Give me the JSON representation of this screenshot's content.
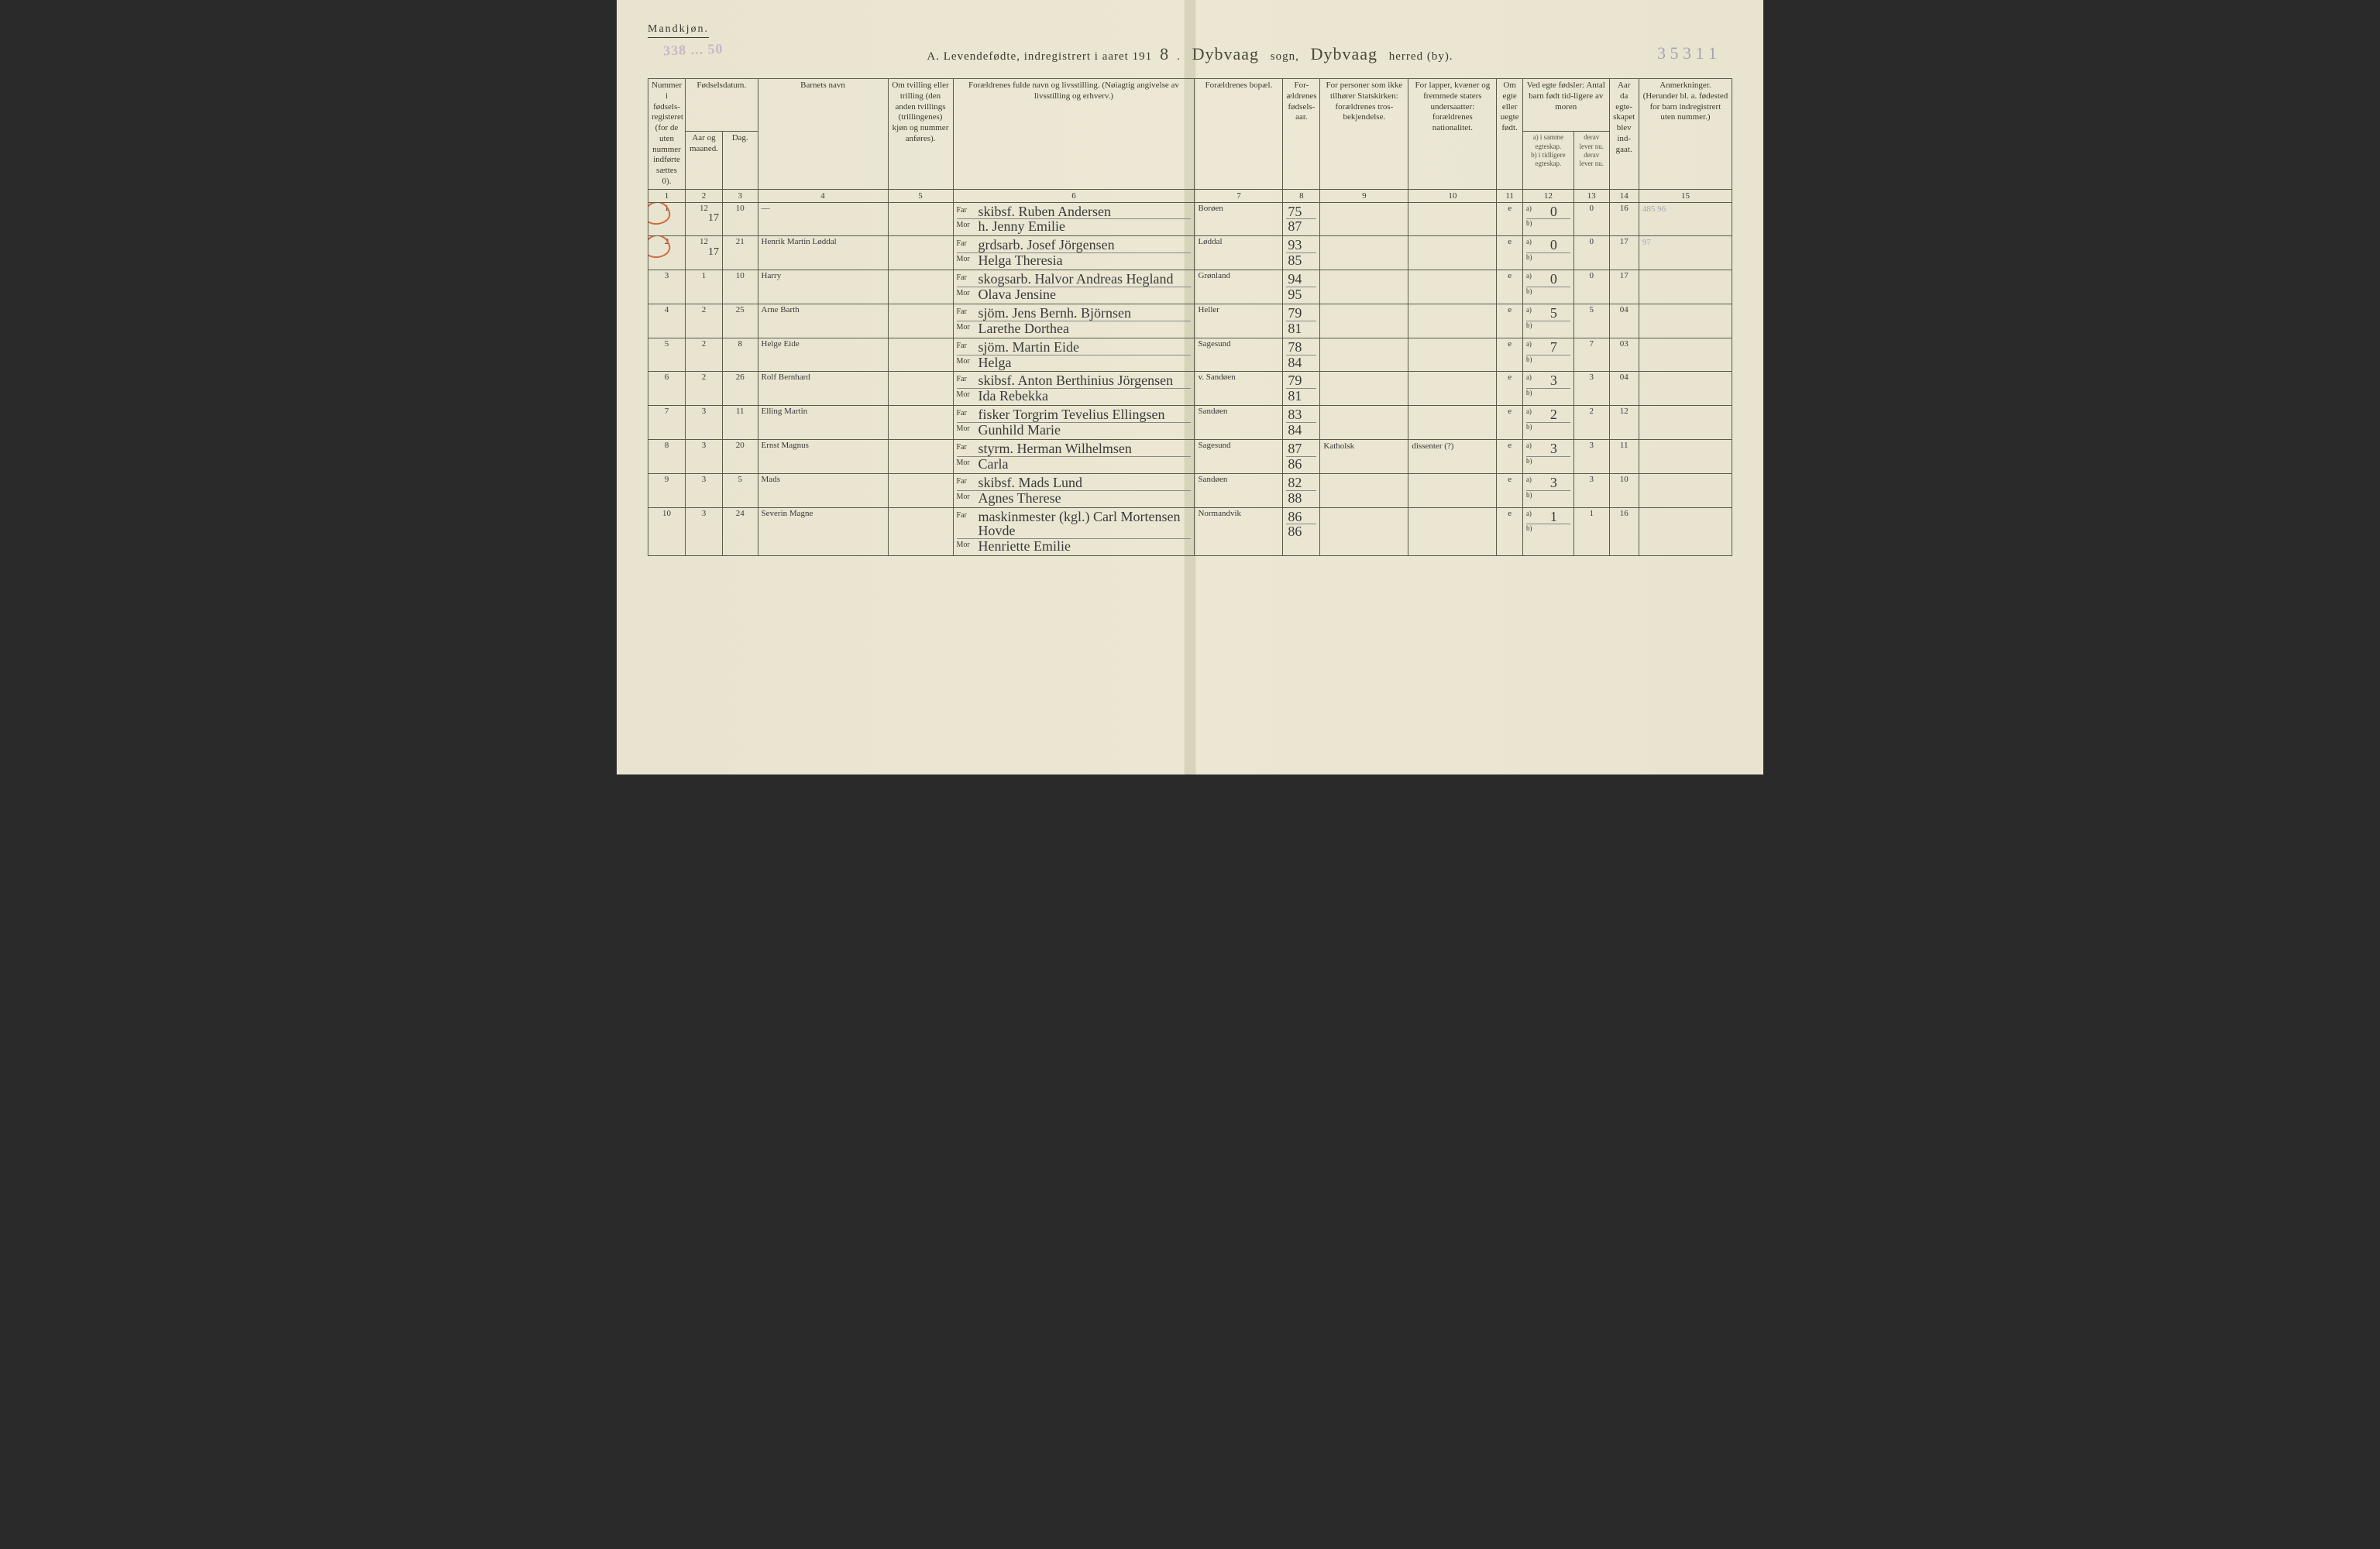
{
  "gender_heading": "Mandkjøn.",
  "stamp_text": "338 ... 50",
  "title_prefix": "A. Levendefødte, indregistrert i aaret 191",
  "title_year_suffix": "8",
  "title_dot": ".",
  "sogn_value": "Dybvaag",
  "sogn_label": "sogn,",
  "herred_value": "Dybvaag",
  "herred_label": "herred (by).",
  "page_code": "3 5 3 1 1",
  "headers": {
    "col1": "Nummer i fødsels-registeret (for de uten nummer indførte sættes 0).",
    "col2_top": "Fødselsdatum.",
    "col2a": "Aar og maaned.",
    "col2b": "Dag.",
    "col4": "Barnets navn",
    "col5": "Om tvilling eller trilling (den anden tvillings (trillingenes) kjøn og nummer anføres).",
    "col6": "Forældrenes fulde navn og livsstilling. (Nøiagtig angivelse av livsstilling og erhverv.)",
    "col7": "Forældrenes bopæl.",
    "col8": "For-ældrenes fødsels-aar.",
    "col9": "For personer som ikke tilhører Statskirken: forældrenes tros-bekjendelse.",
    "col10": "For lapper, kvæner og fremmede staters undersaatter: forældrenes nationalitet.",
    "col11": "Om egte eller uegte født.",
    "col12_top": "Ved egte fødsler: Antal barn født tid-ligere av moren",
    "col12a": "a) i samme egteskap.",
    "col12b": "b) i tidligere egteskap.",
    "col13_top": "derav lever nu.",
    "col13b": "derav lever nu.",
    "col14": "Aar da egte-skapet blev ind-gaat.",
    "col15": "Anmerkninger. (Herunder bl. a. fødested for barn indregistrert uten nummer.)"
  },
  "colnums": [
    "1",
    "2",
    "3",
    "4",
    "5",
    "6",
    "7",
    "8",
    "9",
    "10",
    "11",
    "12",
    "13",
    "14",
    "15"
  ],
  "rows": [
    {
      "num": "1",
      "circle": true,
      "year_month": "12",
      "year_below": "17",
      "day": "10",
      "name": "—",
      "far": "skibsf. Ruben Andersen",
      "mor": "h. Jenny Emilie",
      "residence": "Borøen",
      "far_year": "75",
      "mor_year": "87",
      "faith": "",
      "nat": "",
      "legit": "e",
      "c12a": "0",
      "c12b": "",
      "c13": "0",
      "c14": "16",
      "remark": "485 96"
    },
    {
      "num": "2",
      "circle": true,
      "year_month": "12",
      "year_below": "17",
      "day": "21",
      "name": "Henrik Martin Løddal",
      "far": "grdsarb. Josef Jörgensen",
      "mor": "Helga Theresia",
      "residence": "Løddal",
      "far_year": "93",
      "mor_year": "85",
      "faith": "",
      "nat": "",
      "legit": "e",
      "c12a": "0",
      "c12b": "",
      "c13": "0",
      "c14": "17",
      "remark": "97"
    },
    {
      "num": "3",
      "circle": false,
      "year_month": "1",
      "year_below": "",
      "day": "10",
      "name": "Harry",
      "far": "skogsarb. Halvor Andreas Hegland",
      "mor": "Olava Jensine",
      "residence": "Grønland",
      "far_year": "94",
      "mor_year": "95",
      "faith": "",
      "nat": "",
      "legit": "e",
      "c12a": "0",
      "c12b": "",
      "c13": "0",
      "c14": "17",
      "remark": ""
    },
    {
      "num": "4",
      "circle": false,
      "year_month": "2",
      "year_below": "",
      "day": "25",
      "name": "Arne Barth",
      "far": "sjöm. Jens Bernh. Björnsen",
      "mor": "Larethe Dorthea",
      "residence": "Heller",
      "far_year": "79",
      "mor_year": "81",
      "faith": "",
      "nat": "",
      "legit": "e",
      "c12a": "5",
      "c12b": "",
      "c13": "5",
      "c14": "04",
      "remark": ""
    },
    {
      "num": "5",
      "circle": false,
      "year_month": "2",
      "year_below": "",
      "day": "8",
      "name": "Helge Eide",
      "far": "sjöm. Martin Eide",
      "mor": "Helga",
      "residence": "Sagesund",
      "far_year": "78",
      "mor_year": "84",
      "faith": "",
      "nat": "",
      "legit": "e",
      "c12a": "7",
      "c12b": "",
      "c13": "7",
      "c14": "03",
      "remark": ""
    },
    {
      "num": "6",
      "circle": false,
      "year_month": "2",
      "year_below": "",
      "day": "26",
      "name": "Rolf Bernhard",
      "far": "skibsf. Anton Berthinius Jörgensen",
      "mor": "Ida Rebekka",
      "residence": "v. Sandøen",
      "far_year": "79",
      "mor_year": "81",
      "faith": "",
      "nat": "",
      "legit": "e",
      "c12a": "3",
      "c12b": "",
      "c13": "3",
      "c14": "04",
      "remark": ""
    },
    {
      "num": "7",
      "circle": false,
      "year_month": "3",
      "year_below": "",
      "day": "11",
      "name": "Elling Martin",
      "far": "fisker Torgrim Tevelius Ellingsen",
      "mor": "Gunhild Marie",
      "residence": "Sandøen",
      "far_year": "83",
      "mor_year": "84",
      "faith": "",
      "nat": "",
      "legit": "e",
      "c12a": "2",
      "c12b": "",
      "c13": "2",
      "c14": "12",
      "remark": ""
    },
    {
      "num": "8",
      "circle": false,
      "year_month": "3",
      "year_below": "",
      "day": "20",
      "name": "Ernst Magnus",
      "far": "styrm. Herman Wilhelmsen",
      "mor": "Carla",
      "residence": "Sagesund",
      "far_year": "87",
      "mor_year": "86",
      "faith": "Katholsk",
      "nat": "dissenter (?)",
      "legit": "e",
      "c12a": "3",
      "c12b": "",
      "c13": "3",
      "c14": "11",
      "remark": ""
    },
    {
      "num": "9",
      "circle": false,
      "year_month": "3",
      "year_below": "",
      "day": "5",
      "name": "Mads",
      "far": "skibsf. Mads Lund",
      "mor": "Agnes Therese",
      "residence": "Sandøen",
      "far_year": "82",
      "mor_year": "88",
      "faith": "",
      "nat": "",
      "legit": "e",
      "c12a": "3",
      "c12b": "",
      "c13": "3",
      "c14": "10",
      "remark": ""
    },
    {
      "num": "10",
      "circle": false,
      "year_month": "3",
      "year_below": "",
      "day": "24",
      "name": "Severin Magne",
      "far": "maskinmester (kgl.) Carl Mortensen Hovde",
      "mor": "Henriette Emilie",
      "residence": "Normandvik",
      "far_year": "86",
      "mor_year": "86",
      "faith": "",
      "nat": "",
      "legit": "e",
      "c12a": "1",
      "c12b": "",
      "c13": "1",
      "c14": "16",
      "remark": ""
    }
  ]
}
